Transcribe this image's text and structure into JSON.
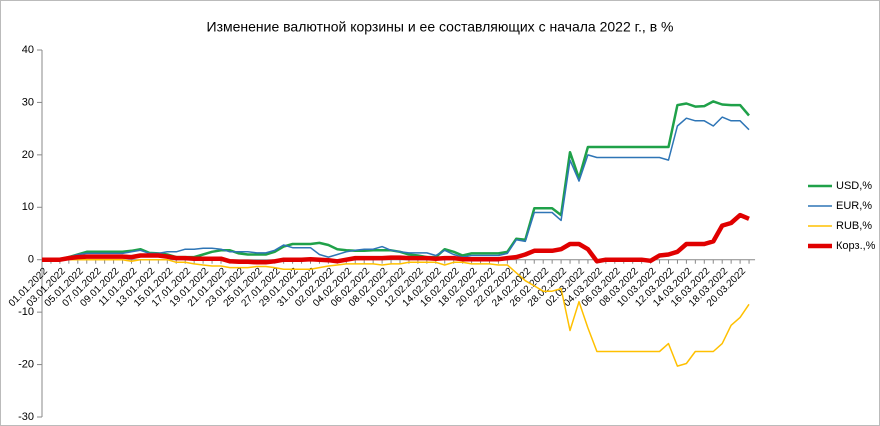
{
  "chart_data": {
    "type": "line",
    "title": "Изменение валютной корзины и ее составляющих с начала 2022 г., в %",
    "categories": [
      "01.01.2022",
      null,
      "03.01.2022",
      null,
      "05.01.2022",
      null,
      "07.01.2022",
      null,
      "09.01.2022",
      null,
      "11.01.2022",
      null,
      "13.01.2022",
      null,
      "15.01.2022",
      null,
      "17.01.2022",
      null,
      "19.01.2022",
      null,
      "21.01.2022",
      null,
      "23.01.2022",
      null,
      "25.01.2022",
      null,
      "27.01.2022",
      null,
      "29.01.2022",
      null,
      "31.01.2022",
      null,
      "02.02.2022",
      null,
      "04.02.2022",
      null,
      "06.02.2022",
      null,
      "08.02.2022",
      null,
      "10.02.2022",
      null,
      "12.02.2022",
      null,
      "14.02.2022",
      null,
      "16.02.2022",
      null,
      "18.02.2022",
      null,
      "20.02.2022",
      null,
      "22.02.2022",
      null,
      "24.02.2022",
      null,
      "26.02.2022",
      null,
      "28.02.2022",
      null,
      "02.03.2022",
      null,
      "04.03.2022",
      null,
      "06.03.2022",
      null,
      "08.03.2022",
      null,
      "10.03.2022",
      null,
      "12.03.2022",
      null,
      "14.03.2022",
      null,
      "16.03.2022",
      null,
      "18.03.2022",
      null,
      "20.03.2022",
      null
    ],
    "series": [
      {
        "name": "USD,%",
        "color": "#1fa149",
        "values": [
          0,
          0,
          0,
          0.5,
          1,
          1.5,
          1.5,
          1.5,
          1.5,
          1.5,
          1.7,
          2,
          1.3,
          1.2,
          1,
          0.5,
          0.5,
          0.5,
          1,
          1.5,
          1.8,
          1.8,
          1.2,
          1,
          1,
          1,
          1.5,
          2.5,
          3,
          3,
          3,
          3.2,
          2.8,
          2,
          1.8,
          1.7,
          1.7,
          1.8,
          1.8,
          1.8,
          1.5,
          1,
          0.8,
          0.5,
          0.5,
          2,
          1.5,
          0.8,
          1.2,
          1.2,
          1.2,
          1.2,
          1.5,
          4,
          3.8,
          9.8,
          9.8,
          9.8,
          8.5,
          20.5,
          15.5,
          21.5,
          21.5,
          21.5,
          21.5,
          21.5,
          21.5,
          21.5,
          21.5,
          21.5,
          21.5,
          29.5,
          29.8,
          29.2,
          29.3,
          30.2,
          29.6,
          29.5,
          29.5,
          27.5
        ]
      },
      {
        "name": "EUR,%",
        "color": "#2e75b6",
        "values": [
          0,
          0,
          0,
          0.5,
          1,
          1.2,
          1.2,
          1.2,
          1.2,
          1.2,
          1.5,
          1.8,
          1.2,
          1.2,
          1.5,
          1.5,
          2,
          2,
          2.2,
          2.2,
          2,
          1.5,
          1.5,
          1.5,
          1.3,
          1.3,
          1.8,
          2.8,
          2.3,
          2.3,
          2.3,
          1,
          0.5,
          1,
          1.5,
          1.8,
          2,
          2,
          2.5,
          1.8,
          1.5,
          1.3,
          1.3,
          1.3,
          0.8,
          1.8,
          1,
          0.5,
          0.8,
          0.8,
          0.8,
          0.8,
          1.2,
          3.8,
          3.5,
          9,
          9,
          9,
          7.5,
          19,
          15,
          20,
          19.5,
          19.5,
          19.5,
          19.5,
          19.5,
          19.5,
          19.5,
          19.5,
          19,
          25.5,
          27,
          26.5,
          26.5,
          25.5,
          27.2,
          26.5,
          26.5,
          24.8
        ]
      },
      {
        "name": "RUB,%",
        "color": "#ffc000",
        "values": [
          0,
          0,
          0,
          0,
          0,
          0,
          0,
          0,
          0,
          0,
          -0.3,
          0,
          0,
          0,
          0,
          -0.5,
          -0.5,
          -0.8,
          -1,
          -1.2,
          -1.2,
          -1.5,
          -1.5,
          -1.5,
          -1.3,
          -1.3,
          -1.5,
          -1.8,
          -1.8,
          -1.8,
          -1.8,
          -1.5,
          -1.2,
          -1,
          -0.8,
          -0.8,
          -0.8,
          -0.8,
          -1,
          -0.8,
          -0.8,
          -0.5,
          -0.5,
          -0.5,
          -0.5,
          -1,
          -0.5,
          -0.5,
          -0.8,
          -0.8,
          -0.8,
          -1,
          -1,
          -2.5,
          -4,
          -5,
          -6,
          -6,
          -5.5,
          -13.5,
          -8,
          -13,
          -17.5,
          -17.5,
          -17.5,
          -17.5,
          -17.5,
          -17.5,
          -17.5,
          -17.5,
          -16,
          -20.3,
          -19.8,
          -17.5,
          -17.5,
          -17.5,
          -16,
          -12.5,
          -11,
          -8.5
        ]
      },
      {
        "name": "Корз.,%",
        "color": "#e00000",
        "values": [
          0,
          0,
          0,
          0.3,
          0.5,
          0.6,
          0.6,
          0.6,
          0.6,
          0.6,
          0.5,
          0.8,
          0.8,
          0.8,
          0.6,
          0.3,
          0.3,
          0.2,
          0.2,
          0.2,
          0.2,
          -0.3,
          -0.4,
          -0.4,
          -0.5,
          -0.5,
          -0.3,
          0,
          0,
          0,
          0.1,
          0,
          -0.1,
          -0.3,
          0,
          0.3,
          0.3,
          0.3,
          0.3,
          0.4,
          0.4,
          0.3,
          0.3,
          0.3,
          0.2,
          0.3,
          0.3,
          0.1,
          0.1,
          0.1,
          0.1,
          0.1,
          0.3,
          0.5,
          1,
          1.7,
          1.7,
          1.7,
          2,
          3,
          3,
          2,
          -0.3,
          0,
          0,
          0,
          0,
          0,
          -0.2,
          0.8,
          1,
          1.5,
          3,
          3,
          3,
          3.5,
          6.5,
          7,
          8.5,
          7.8
        ]
      }
    ],
    "ylim": [
      -30,
      40
    ],
    "yticks": [
      -30,
      -20,
      -10,
      0,
      10,
      20,
      30,
      40
    ]
  }
}
